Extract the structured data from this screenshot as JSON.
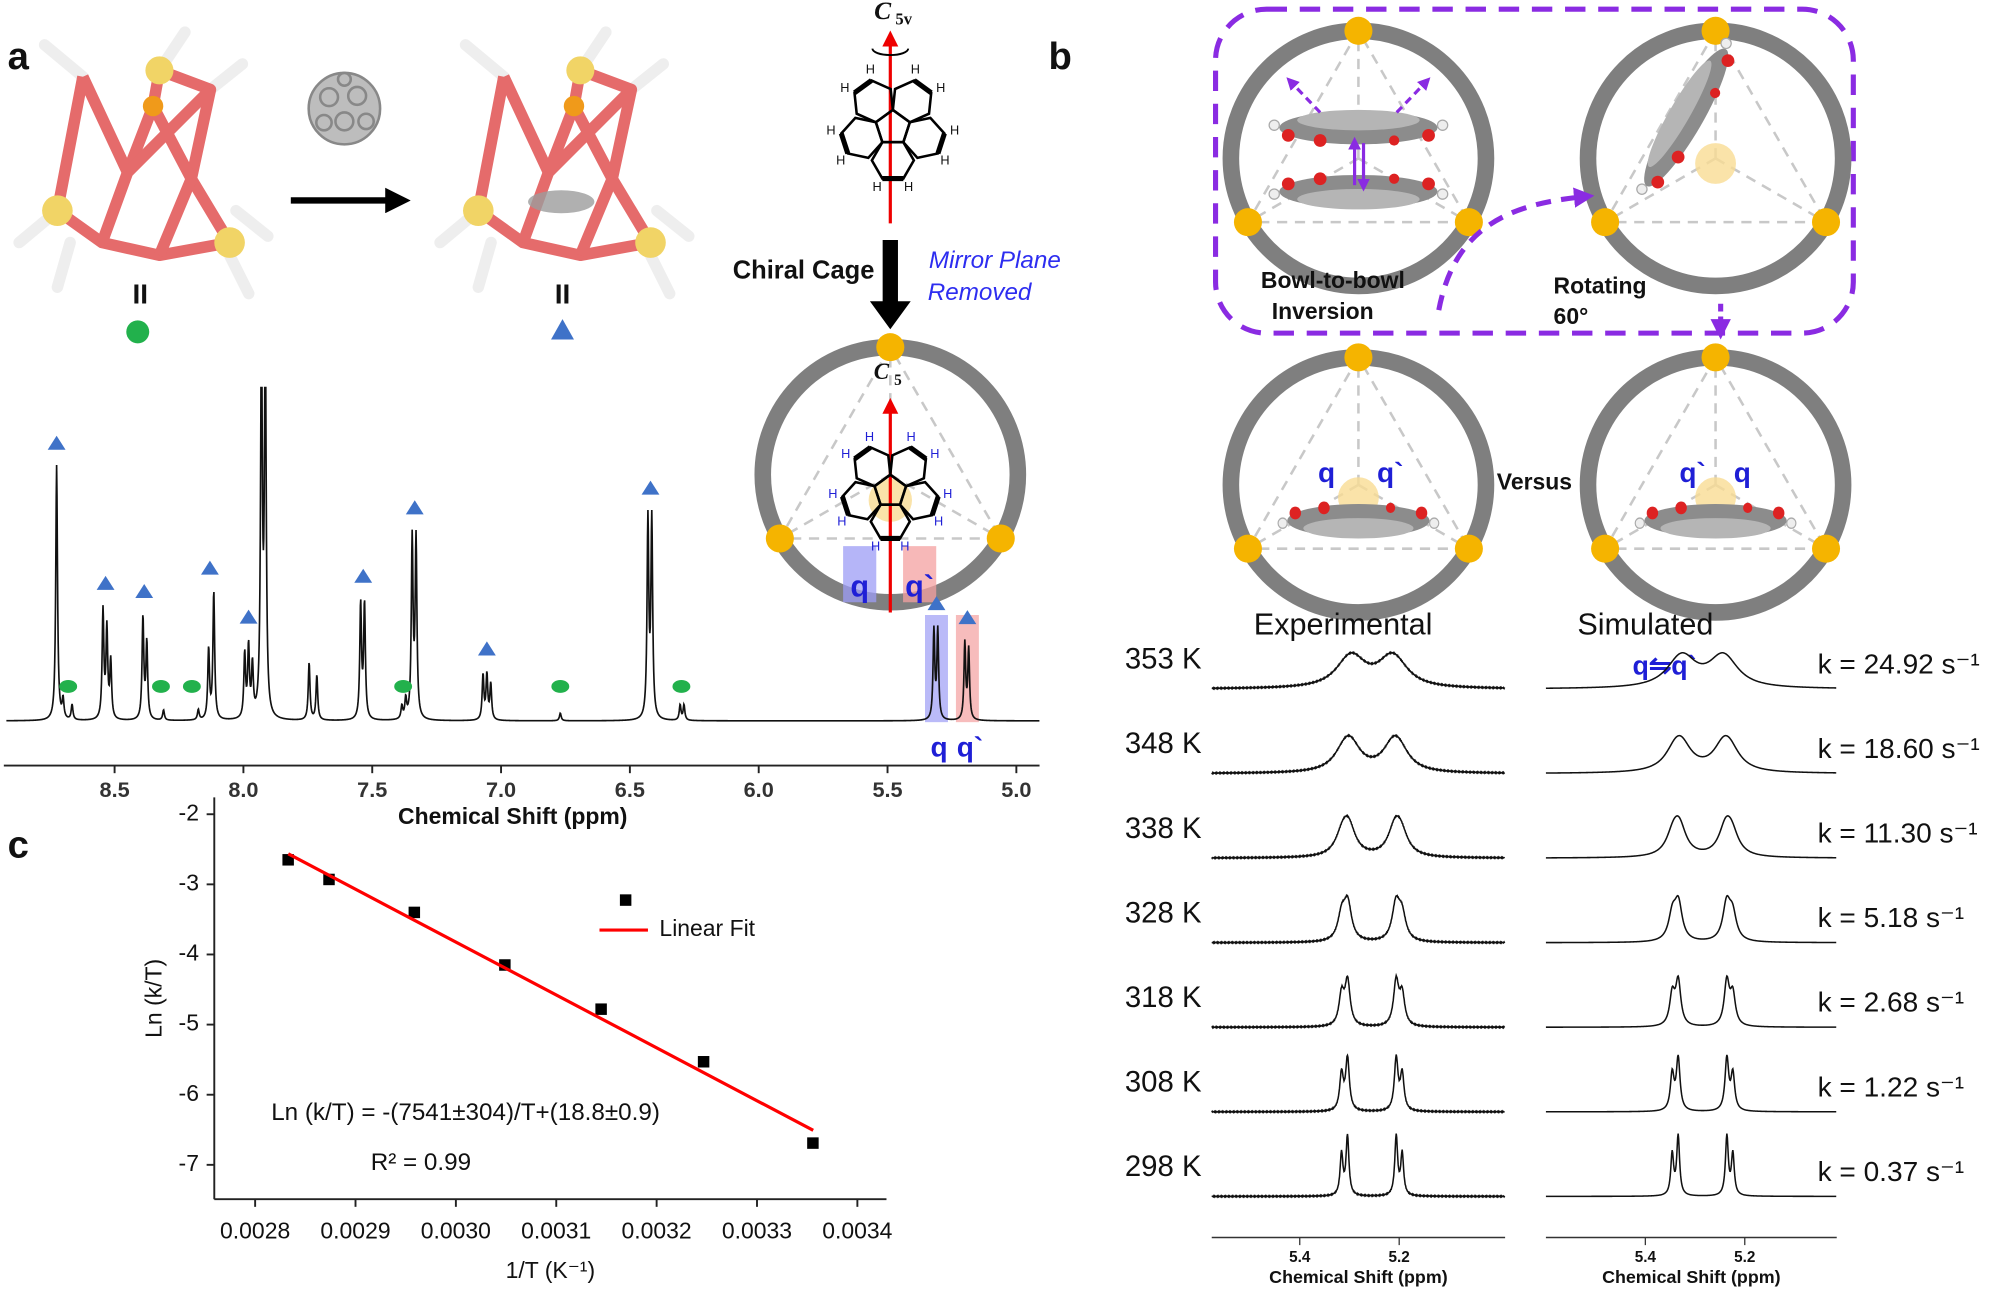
{
  "panel_labels": {
    "a": "a",
    "b": "b",
    "c": "c"
  },
  "panel_a": {
    "cage_labels": [
      "II",
      "II"
    ],
    "symmetry_top": {
      "symbol": "C",
      "subscript": "5v"
    },
    "symmetry_cage": {
      "symbol": "C",
      "subscript": "5"
    },
    "atom_label": "H",
    "step_label": "Chiral Cage",
    "note": [
      "Mirror Plane",
      "Removed"
    ],
    "proton_labels": [
      "q",
      "q`"
    ],
    "spectrum": {
      "xlabel": "Chemical Shift (ppm)",
      "xlim": [
        8.92,
        4.91
      ],
      "xticks": [
        8.5,
        {
          "value": 8,
          "label": "8.0"
        },
        7.5,
        {
          "value": 7,
          "label": "7.0"
        },
        6.5,
        {
          "value": 6,
          "label": "6.0"
        },
        5.5,
        {
          "value": 5,
          "label": "5.0"
        }
      ],
      "peaks": [
        [
          8.725,
          200
        ],
        [
          8.7,
          15
        ],
        [
          8.665,
          12
        ],
        [
          8.545,
          85
        ],
        [
          8.53,
          70
        ],
        [
          8.515,
          45
        ],
        [
          8.39,
          80
        ],
        [
          8.375,
          60
        ],
        [
          8.31,
          8
        ],
        [
          8.175,
          8
        ],
        [
          8.135,
          55
        ],
        [
          8.115,
          100
        ],
        [
          7.995,
          50
        ],
        [
          7.98,
          55
        ],
        [
          7.965,
          40
        ],
        [
          7.93,
          300
        ],
        [
          7.915,
          300
        ],
        [
          7.745,
          45
        ],
        [
          7.715,
          35
        ],
        [
          7.545,
          90
        ],
        [
          7.53,
          90
        ],
        [
          7.385,
          10
        ],
        [
          7.37,
          15
        ],
        [
          7.345,
          140
        ],
        [
          7.33,
          140
        ],
        [
          7.07,
          35
        ],
        [
          7.055,
          35
        ],
        [
          7.04,
          28
        ],
        [
          6.77,
          6
        ],
        [
          6.43,
          155
        ],
        [
          6.415,
          155
        ],
        [
          6.305,
          12
        ],
        [
          6.29,
          12
        ],
        [
          5.32,
          70
        ],
        [
          5.305,
          70
        ],
        [
          5.2,
          60
        ],
        [
          5.185,
          55
        ]
      ],
      "triangle_marks": [
        8.725,
        8.535,
        8.385,
        8.13,
        7.98,
        7.535,
        7.335,
        7.055,
        6.42,
        5.31,
        5.19
      ],
      "circle_marks": [
        8.68,
        8.32,
        8.2,
        7.38,
        6.77,
        6.3
      ],
      "q_peaks": [
        5.31,
        5.19
      ]
    }
  },
  "panel_b": {
    "captions": [
      "Bowl-to-bowl",
      "Inversion"
    ],
    "rotation": [
      "Rotating",
      "60°"
    ],
    "versus": "Versus",
    "proton_labels": [
      "q",
      "q`"
    ],
    "exchange_label": "q⇋q`",
    "columns": [
      "Experimental",
      "Simulated"
    ],
    "rows": [
      {
        "temperature": "353 K",
        "k": 24.92,
        "k_label": "k = 24.92 s⁻¹"
      },
      {
        "temperature": "348 K",
        "k": 18.6,
        "k_label": "k = 18.60 s⁻¹"
      },
      {
        "temperature": "338 K",
        "k": 11.3,
        "k_label": "k = 11.30 s⁻¹"
      },
      {
        "temperature": "328 K",
        "k": 5.18,
        "k_label": "k = 5.18 s⁻¹"
      },
      {
        "temperature": "318 K",
        "k": 2.68,
        "k_label": "k = 2.68 s⁻¹"
      },
      {
        "temperature": "308 K",
        "k": 1.22,
        "k_label": "k = 1.22 s⁻¹"
      },
      {
        "temperature": "298 K",
        "k": 0.37,
        "k_label": "k = 0.37 s⁻¹"
      }
    ],
    "xlabel": "Chemical Shift (ppm)",
    "xticks": [
      5.4,
      5.2
    ],
    "xlim_experimental": [
      5.577,
      4.987
    ],
    "xlim_simulated": [
      5.6,
      5.015
    ],
    "sites_experimental": [
      5.31,
      5.2
    ],
    "sites_simulated": [
      5.34,
      5.23
    ],
    "coupling_ppm": 0.012
  },
  "chart_data": {
    "type": "scatter",
    "xlabel": "1/T (K⁻¹)",
    "ylabel": "Ln (k/T)",
    "x": [
      0.0028329,
      0.0028736,
      0.0029586,
      0.0030488,
      0.0031447,
      0.0032468,
      0.0033557
    ],
    "series": [
      {
        "color": "#000000",
        "values": [
          -2.65,
          -2.93,
          -3.4,
          -4.15,
          -4.78,
          -5.53,
          -6.69
        ]
      },
      {
        "name": "Linear Fit",
        "type": "line",
        "color": "#ff0000",
        "x": [
          0.002833,
          0.003356
        ],
        "values": [
          -2.564,
          -6.508
        ]
      }
    ],
    "xlim": [
      0.0027593,
      0.003429
    ],
    "ylim": [
      -7.49,
      -1.76
    ],
    "xticks": [
      0.0028,
      0.0029,
      {
        "value": 0.003,
        "label": "0.0030"
      },
      0.0031,
      0.0032,
      0.0033,
      0.0034
    ],
    "yticks": [
      -2,
      -3,
      -4,
      -5,
      -6,
      -7
    ],
    "annotations": [
      "Ln (k/T) = -(7541±304)/T+(18.8±0.9)",
      "R² = 0.99"
    ]
  }
}
